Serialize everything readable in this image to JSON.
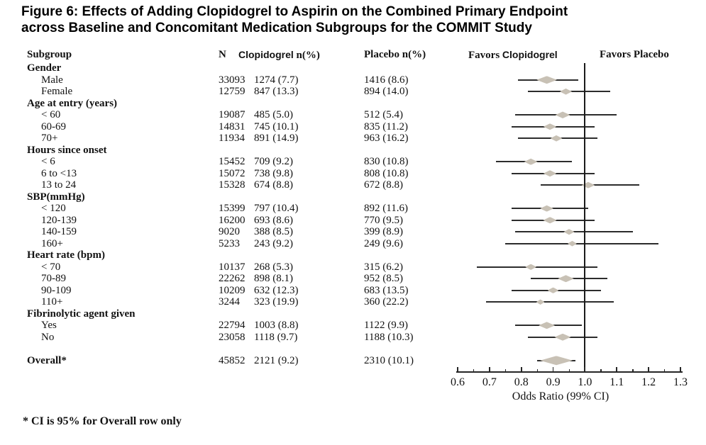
{
  "title": {
    "line1": "Figure 6: Effects of Adding Clopidogrel to Aspirin on the Combined Primary Endpoint",
    "line2": "across Baseline and Concomitant Medication Subgroups for the COMMIT Study"
  },
  "columns": {
    "subgroup": "Subgroup",
    "n": "N",
    "clopidogrel_drug": "Clopidogrel",
    "clopidogrel_unit": "n(%)",
    "placebo": "Placebo n(%)"
  },
  "plot_headers": {
    "favors_left_word": "Favors",
    "favors_left_drug": "Clopidogrel",
    "favors_right": "Favors Placebo"
  },
  "footnote": "* CI is 95% for Overall row only",
  "colors": {
    "diamond": "#c8c1b5",
    "ci_line": "#2c2c2c",
    "reference_line": "#1a1a1a",
    "text": "#121212"
  },
  "chart_data": {
    "type": "forest",
    "xlabel": "Odds Ratio (99% CI)",
    "xlim": [
      0.6,
      1.3
    ],
    "x_ticks": [
      0.6,
      0.7,
      0.8,
      0.9,
      1.0,
      1.1,
      1.2,
      1.3
    ],
    "reference_line": 1.0,
    "overall_total_n": 45852,
    "rows": [
      {
        "type": "section",
        "label": "Gender"
      },
      {
        "type": "item",
        "label": "Male",
        "n": "33093",
        "clopidogrel": "1274 (7.7)",
        "placebo": "1416 (8.6)",
        "or": 0.88,
        "lo": 0.79,
        "hi": 0.98
      },
      {
        "type": "item",
        "label": "Female",
        "n": "12759",
        "clopidogrel": "847 (13.3)",
        "placebo": "894 (14.0)",
        "or": 0.94,
        "lo": 0.82,
        "hi": 1.08
      },
      {
        "type": "section",
        "label": "Age at entry (years)"
      },
      {
        "type": "item",
        "label": "< 60",
        "n": "19087",
        "clopidogrel": "485 (5.0)",
        "placebo": "512 (5.4)",
        "or": 0.93,
        "lo": 0.78,
        "hi": 1.1
      },
      {
        "type": "item",
        "label": "60-69",
        "n": "14831",
        "clopidogrel": "745 (10.1)",
        "placebo": "835 (11.2)",
        "or": 0.89,
        "lo": 0.77,
        "hi": 1.03
      },
      {
        "type": "item",
        "label": "70+",
        "n": "11934",
        "clopidogrel": "891 (14.9)",
        "placebo": "963 (16.2)",
        "or": 0.91,
        "lo": 0.79,
        "hi": 1.04
      },
      {
        "type": "section",
        "label": "Hours since onset"
      },
      {
        "type": "item",
        "label": "< 6",
        "n": "15452",
        "clopidogrel": "709 (9.2)",
        "placebo": "830 (10.8)",
        "or": 0.83,
        "lo": 0.72,
        "hi": 0.96
      },
      {
        "type": "item",
        "label": "6 to <13",
        "n": "15072",
        "clopidogrel": "738 (9.8)",
        "placebo": "808 (10.8)",
        "or": 0.89,
        "lo": 0.77,
        "hi": 1.03
      },
      {
        "type": "item",
        "label": "13 to 24",
        "n": "15328",
        "clopidogrel": "674 (8.8)",
        "placebo": "672 (8.8)",
        "or": 1.01,
        "lo": 0.86,
        "hi": 1.17
      },
      {
        "type": "section",
        "label": "SBP(mmHg)"
      },
      {
        "type": "item",
        "label": "< 120",
        "n": "15399",
        "clopidogrel": "797 (10.4)",
        "placebo": "892 (11.6)",
        "or": 0.88,
        "lo": 0.77,
        "hi": 1.01
      },
      {
        "type": "item",
        "label": "120-139",
        "n": "16200",
        "clopidogrel": "693 (8.6)",
        "placebo": "770 (9.5)",
        "or": 0.89,
        "lo": 0.77,
        "hi": 1.03
      },
      {
        "type": "item",
        "label": "140-159",
        "n": "9020",
        "clopidogrel": "388 (8.5)",
        "placebo": "399 (8.9)",
        "or": 0.95,
        "lo": 0.78,
        "hi": 1.15
      },
      {
        "type": "item",
        "label": "160+",
        "n": "5233",
        "clopidogrel": "243 (9.2)",
        "placebo": "249 (9.6)",
        "or": 0.96,
        "lo": 0.75,
        "hi": 1.23
      },
      {
        "type": "section",
        "label": "Heart rate (bpm)"
      },
      {
        "type": "item",
        "label": "< 70",
        "n": "10137",
        "clopidogrel": "268 (5.3)",
        "placebo": "315 (6.2)",
        "or": 0.83,
        "lo": 0.66,
        "hi": 1.04
      },
      {
        "type": "item",
        "label": "70-89",
        "n": "22262",
        "clopidogrel": "898 (8.1)",
        "placebo": "952 (8.5)",
        "or": 0.94,
        "lo": 0.83,
        "hi": 1.07
      },
      {
        "type": "item",
        "label": "90-109",
        "n": "10209",
        "clopidogrel": "632 (12.3)",
        "placebo": "683 (13.5)",
        "or": 0.9,
        "lo": 0.77,
        "hi": 1.05
      },
      {
        "type": "item",
        "label": "110+",
        "n": "3244",
        "clopidogrel": "323 (19.9)",
        "placebo": "360 (22.2)",
        "or": 0.86,
        "lo": 0.69,
        "hi": 1.09
      },
      {
        "type": "section",
        "label": "Fibrinolytic agent given"
      },
      {
        "type": "item",
        "label": "Yes",
        "n": "22794",
        "clopidogrel": "1003 (8.8)",
        "placebo": "1122 (9.9)",
        "or": 0.88,
        "lo": 0.78,
        "hi": 0.99
      },
      {
        "type": "item",
        "label": "No",
        "n": "23058",
        "clopidogrel": "1118 (9.7)",
        "placebo": "1188 (10.3)",
        "or": 0.93,
        "lo": 0.82,
        "hi": 1.04
      },
      {
        "type": "spacer"
      },
      {
        "type": "item",
        "overall": true,
        "label": "Overall*",
        "n": "45852",
        "clopidogrel": "2121 (9.2)",
        "placebo": "2310 (10.1)",
        "or": 0.91,
        "lo": 0.85,
        "hi": 0.97
      }
    ]
  }
}
